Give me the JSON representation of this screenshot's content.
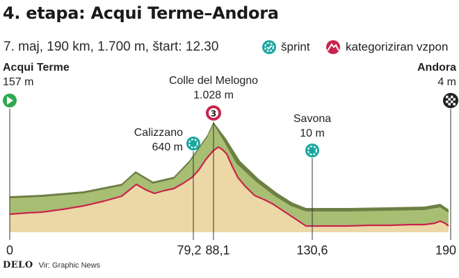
{
  "title": "4. etapa: Acqui Terme–Andora",
  "subtitle": "7. maj, 190 km, 1.700 m, štart: 12.30",
  "legend": {
    "sprint_label": "šprint",
    "climb_label": "kategoriziran vzpon",
    "sprint_color": "#1aa7a0",
    "climb_color": "#c8234c"
  },
  "start": {
    "name": "Acqui Terme",
    "elevation": "157 m"
  },
  "finish": {
    "name": "Andora",
    "elevation": "4 m"
  },
  "points": {
    "calizzano": {
      "name": "Calizzano",
      "elevation": "640 m"
    },
    "melogno": {
      "name": "Colle del Melogno",
      "elevation": "1.028 m",
      "category": "3"
    },
    "savona": {
      "name": "Savona",
      "elevation": "10 m"
    }
  },
  "x_ticks": [
    "0",
    "79,2",
    "88,1",
    "130,6",
    "190"
  ],
  "footer": {
    "brand": "DELO",
    "source": "Vir: Graphic News"
  },
  "colors": {
    "terrain_fill": "#ecd8a6",
    "terrain_top": "#a8bf73",
    "terrain_dark": "#6e7f45",
    "profile_line": "#c8234c"
  }
}
